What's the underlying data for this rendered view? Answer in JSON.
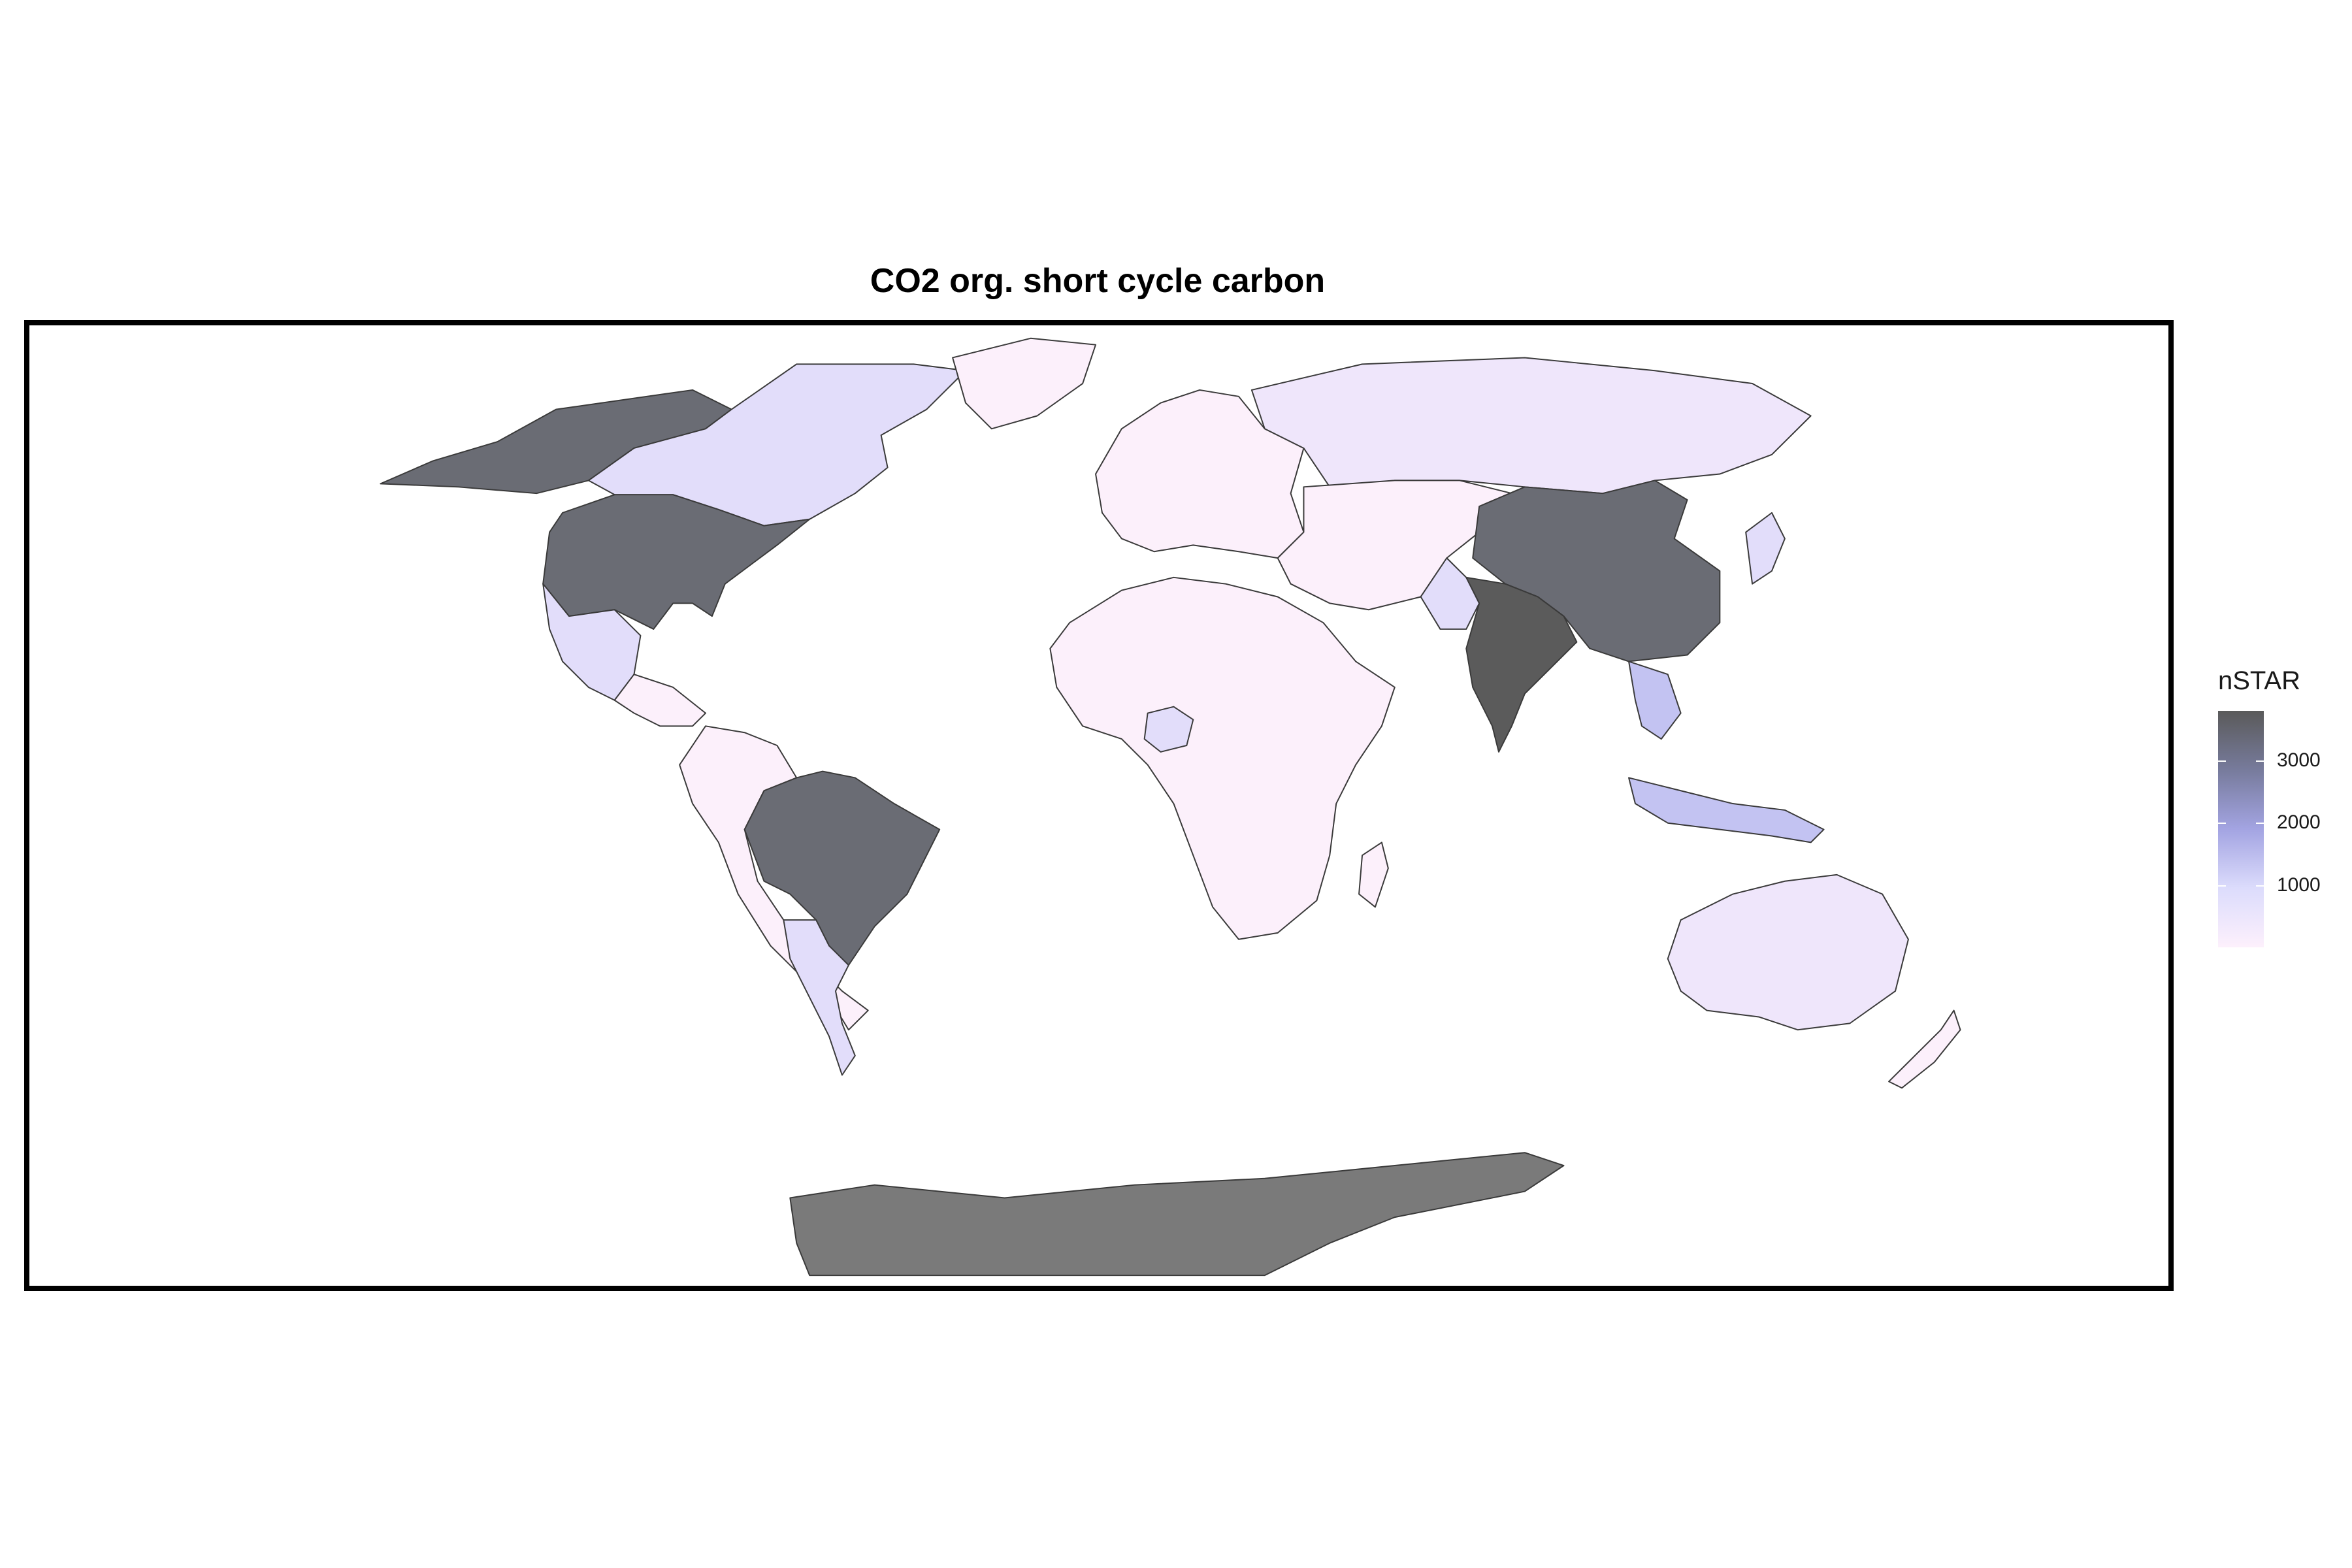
{
  "title": "CO2 org. short cycle carbon",
  "legend": {
    "title": "nSTAR",
    "scale_min": 0,
    "scale_max": 3800,
    "ticks": [
      {
        "label": "3000",
        "value": 3000
      },
      {
        "label": "2000",
        "value": 2000
      },
      {
        "label": "1000",
        "value": 1000
      }
    ],
    "gradient": [
      "#fdf0fc",
      "#dcdcfc",
      "#a3a4e2",
      "#777b9c",
      "#5a5a5a"
    ]
  },
  "colors": {
    "very_low": "#fcf0fb",
    "low": "#efe6fb",
    "mid_low": "#e2ddfa",
    "mid": "#c3c3f2",
    "mid_high": "#a9aae6",
    "high": "#6a6c74",
    "very_high": "#5b5b5b",
    "antarctica": "#7a7a7a",
    "border": "#3a3a3a"
  },
  "regions": [
    {
      "name": "Alaska / USA",
      "level": "high"
    },
    {
      "name": "Canada",
      "level": "mid_low"
    },
    {
      "name": "Greenland",
      "level": "very_low"
    },
    {
      "name": "United States",
      "level": "high"
    },
    {
      "name": "Mexico",
      "level": "mid_low"
    },
    {
      "name": "Central America",
      "level": "very_low"
    },
    {
      "name": "Brazil",
      "level": "high"
    },
    {
      "name": "Argentina",
      "level": "mid_low"
    },
    {
      "name": "South America",
      "level": "very_low"
    },
    {
      "name": "Europe",
      "level": "very_low"
    },
    {
      "name": "Russia",
      "level": "low"
    },
    {
      "name": "Central Asia",
      "level": "very_low"
    },
    {
      "name": "China",
      "level": "high"
    },
    {
      "name": "India",
      "level": "very_high"
    },
    {
      "name": "Pakistan",
      "level": "mid_low"
    },
    {
      "name": "Southeast Asia",
      "level": "mid"
    },
    {
      "name": "Indonesia",
      "level": "mid"
    },
    {
      "name": "Africa",
      "level": "very_low"
    },
    {
      "name": "Nigeria",
      "level": "mid_low"
    },
    {
      "name": "Madagascar",
      "level": "very_low"
    },
    {
      "name": "Australia",
      "level": "low"
    },
    {
      "name": "New Zealand",
      "level": "very_low"
    },
    {
      "name": "Japan",
      "level": "mid_low"
    },
    {
      "name": "Antarctica",
      "level": "antarctica"
    }
  ]
}
